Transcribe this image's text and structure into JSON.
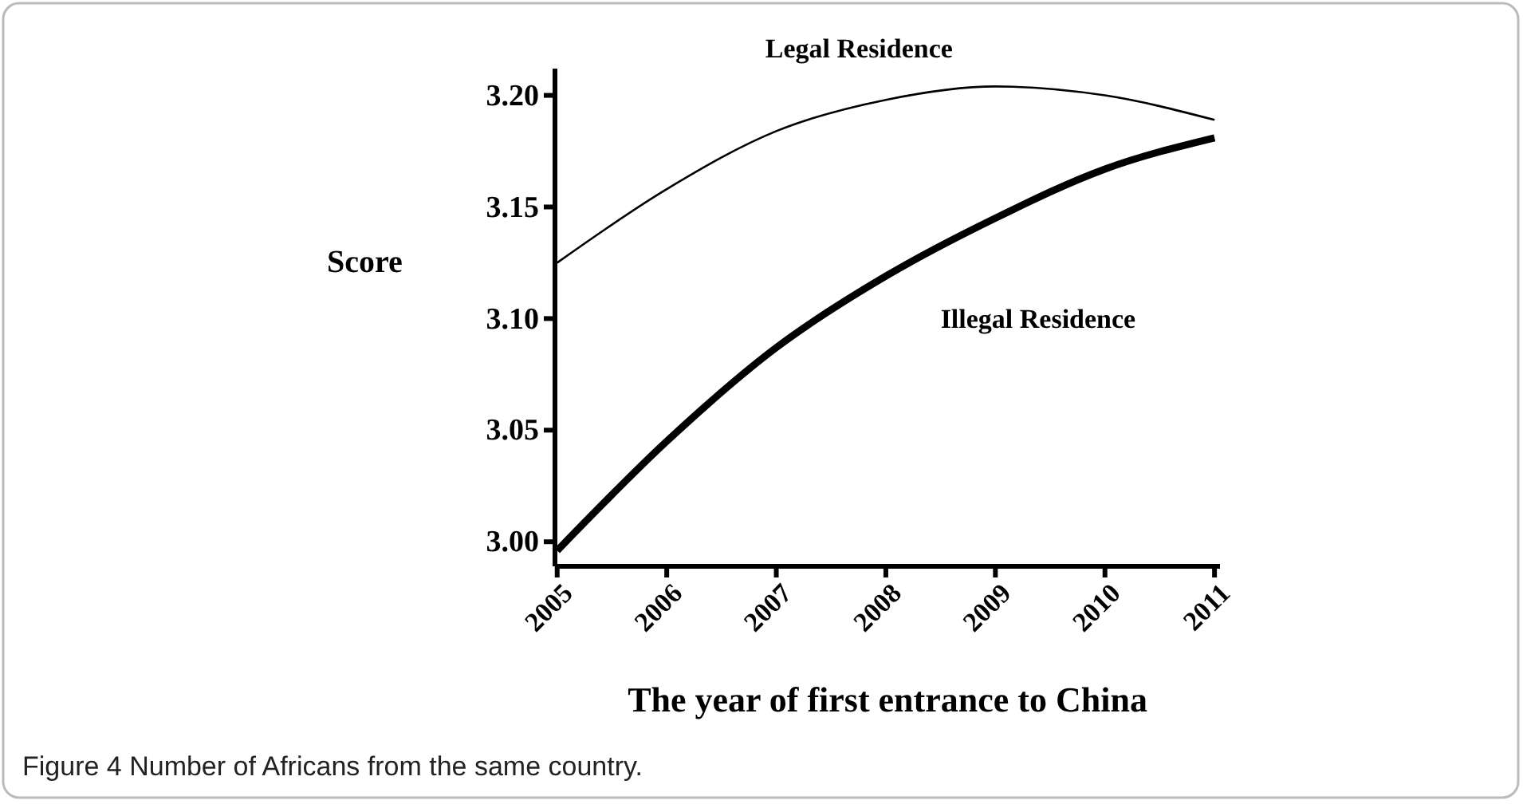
{
  "chart_data": {
    "type": "line",
    "xlabel": "The year of first entrance to China",
    "ylabel": "Score",
    "x": [
      2005,
      2006,
      2007,
      2008,
      2009,
      2010,
      2011
    ],
    "series": [
      {
        "name": "Legal Residence",
        "color": "#000000",
        "values": [
          3.125,
          3.158,
          3.184,
          3.198,
          3.204,
          3.2,
          3.189
        ]
      },
      {
        "name": "Illegal Residence",
        "color": "#000000",
        "values": [
          2.996,
          3.045,
          3.087,
          3.119,
          3.145,
          3.167,
          3.181
        ]
      }
    ],
    "xlim": [
      2004.98,
      2011.05
    ],
    "xticks": [
      2005,
      2006,
      2007,
      2008,
      2009,
      2010,
      2011
    ],
    "ylim": [
      2.989,
      3.212
    ],
    "yticks": [
      {
        "value": 3.0,
        "label": "3.00"
      },
      {
        "value": 3.05,
        "label": "3.05"
      },
      {
        "value": 3.1,
        "label": "3.10"
      },
      {
        "value": 3.15,
        "label": "3.15"
      },
      {
        "value": 3.2,
        "label": "3.20"
      }
    ],
    "grid": false,
    "marker": "none",
    "line_style": "solid",
    "annotations": [
      "Figure 4 Number of Africans from the same country."
    ]
  }
}
